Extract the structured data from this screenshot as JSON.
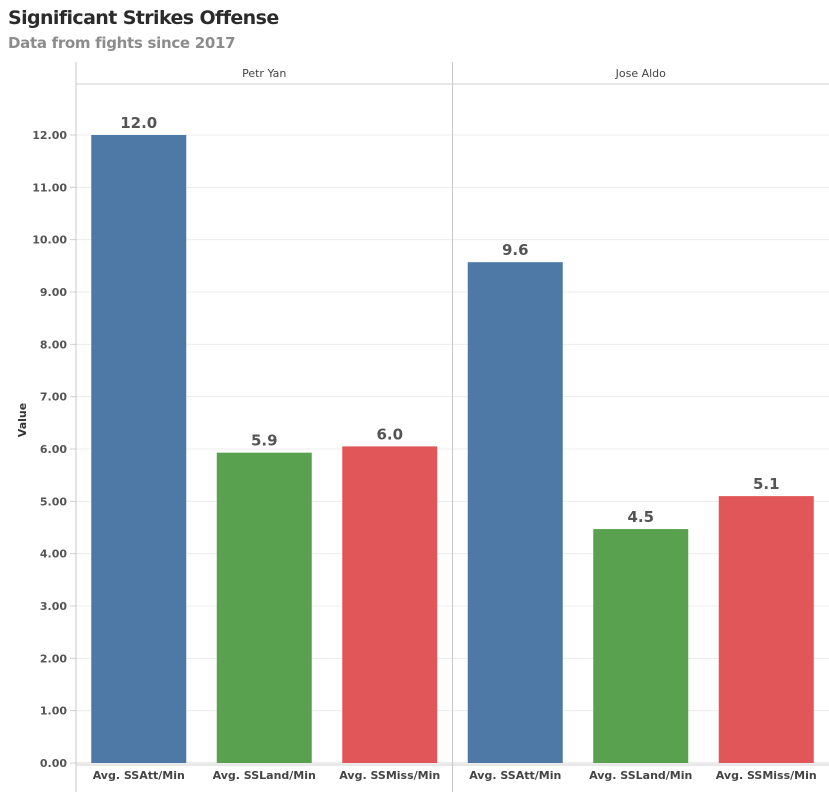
{
  "chart_data": {
    "type": "bar",
    "title": "Significant Strikes Offense",
    "subtitle": "Data from fights since 2017",
    "ylabel": "Value",
    "ylim": [
      0,
      12.5
    ],
    "yticks": [
      "0.00",
      "1.00",
      "2.00",
      "3.00",
      "4.00",
      "5.00",
      "6.00",
      "7.00",
      "8.00",
      "9.00",
      "10.00",
      "11.00",
      "12.00"
    ],
    "categories": [
      "Avg. SSAtt/Min",
      "Avg. SSLand/Min",
      "Avg. SSMiss/Min"
    ],
    "category_colors": [
      "#4e79a7",
      "#59a14f",
      "#e15759"
    ],
    "grid": true,
    "panels": [
      {
        "name": "Petr Yan",
        "values": [
          12.0,
          5.93,
          6.05
        ],
        "labels": [
          "12.0",
          "5.9",
          "6.0"
        ]
      },
      {
        "name": "Jose Aldo",
        "values": [
          9.57,
          4.47,
          5.1
        ],
        "labels": [
          "9.6",
          "4.5",
          "5.1"
        ]
      }
    ]
  }
}
